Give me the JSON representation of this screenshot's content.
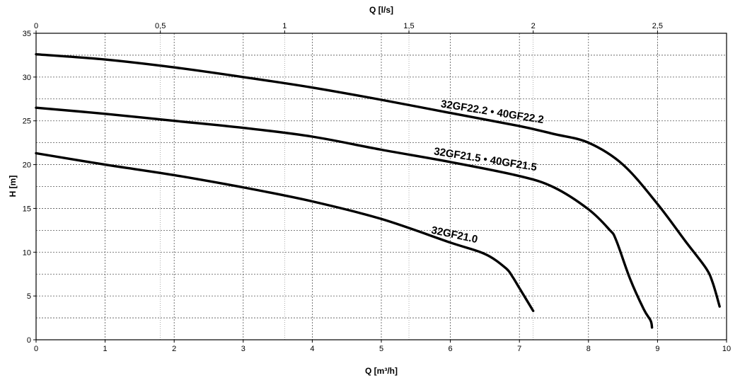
{
  "chart_data": {
    "type": "line",
    "title": "",
    "xlabel": "Q [m³/h]",
    "x2label": "Q [l/s]",
    "ylabel": "H [m]",
    "xlim": [
      0,
      10
    ],
    "ylim": [
      0,
      35
    ],
    "x2lim": [
      0,
      2.7778
    ],
    "xticks": [
      0,
      1,
      2,
      3,
      4,
      5,
      6,
      7,
      8,
      9,
      10
    ],
    "xtick_labels": [
      "0",
      "1",
      "2",
      "3",
      "4",
      "5",
      "6",
      "7",
      "8",
      "9",
      "10"
    ],
    "x2ticks": [
      0,
      0.5,
      1,
      1.5,
      2,
      2.5
    ],
    "x2tick_labels": [
      "0",
      "0,5",
      "1",
      "1,5",
      "2",
      "2,5"
    ],
    "yticks": [
      0,
      5,
      10,
      15,
      20,
      25,
      30,
      35
    ],
    "ytick_labels": [
      "0",
      "5",
      "10",
      "15",
      "20",
      "25",
      "30",
      "35"
    ],
    "grid": true,
    "series": [
      {
        "name": "32GF22.2 • 40GF22.2",
        "x": [
          0,
          1,
          2,
          3,
          4,
          5,
          6,
          7,
          7.5,
          8,
          8.5,
          9,
          9.4,
          9.7,
          9.8,
          9.9
        ],
        "y": [
          32.6,
          32.0,
          31.1,
          30.0,
          28.8,
          27.4,
          25.9,
          24.4,
          23.5,
          22.5,
          20.0,
          15.5,
          11.3,
          8.2,
          6.5,
          3.8
        ]
      },
      {
        "name": "32GF21.5 • 40GF21.5",
        "x": [
          0,
          1,
          2,
          3,
          4,
          5,
          6,
          7,
          7.5,
          8,
          8.3,
          8.4,
          8.6,
          8.8,
          8.9,
          8.92
        ],
        "y": [
          26.5,
          25.8,
          25.0,
          24.2,
          23.2,
          21.7,
          20.3,
          18.7,
          17.4,
          14.9,
          12.6,
          11.4,
          7.0,
          3.5,
          2.2,
          1.4
        ]
      },
      {
        "name": "32GF21.0",
        "x": [
          0,
          1,
          2,
          3,
          4,
          5,
          6,
          6.5,
          6.8,
          6.9,
          7.0,
          7.2
        ],
        "y": [
          21.3,
          20.0,
          18.8,
          17.4,
          15.8,
          13.8,
          11.1,
          9.8,
          8.2,
          7.2,
          5.9,
          3.3
        ]
      }
    ]
  }
}
